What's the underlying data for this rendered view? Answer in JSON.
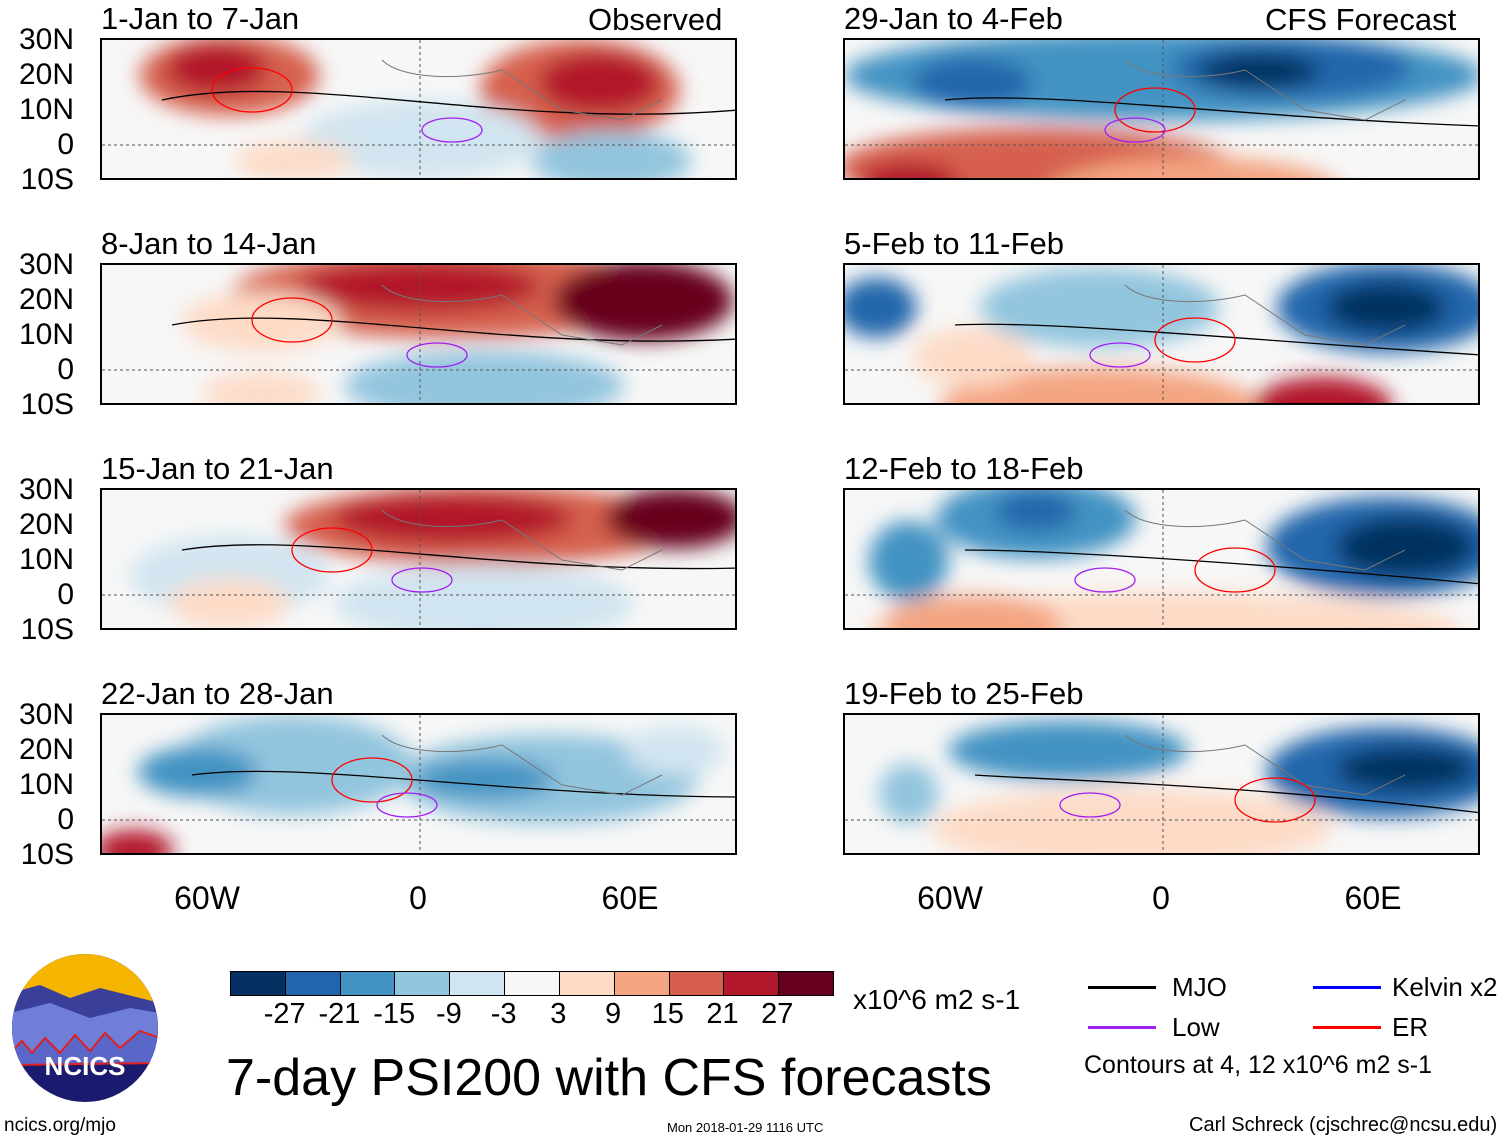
{
  "header": {
    "left_label": "Observed",
    "right_label": "CFS Forecast"
  },
  "panels_left": [
    "1-Jan to 7-Jan",
    "8-Jan to 14-Jan",
    "15-Jan to 21-Jan",
    "22-Jan to 28-Jan"
  ],
  "panels_right": [
    "29-Jan to 4-Feb",
    "5-Feb to 11-Feb",
    "12-Feb to 18-Feb",
    "19-Feb to 25-Feb"
  ],
  "lat_labels": [
    "30N",
    "20N",
    "10N",
    "0",
    "10S"
  ],
  "lon_labels": [
    "60W",
    "0",
    "60E"
  ],
  "colorbar": {
    "colors": [
      "#053061",
      "#2166ac",
      "#4393c3",
      "#92c5de",
      "#d1e5f0",
      "#f7f7f7",
      "#fddbc7",
      "#f4a582",
      "#d6604d",
      "#b2182b",
      "#67001f"
    ],
    "ticks": [
      "-27",
      "-21",
      "-15",
      "-9",
      "-3",
      "3",
      "9",
      "15",
      "21",
      "27"
    ],
    "units": "x10^6 m2 s-1"
  },
  "title": "7-day PSI200 with CFS forecasts",
  "legend": {
    "items": [
      {
        "label": "MJO",
        "color": "#000000"
      },
      {
        "label": "Kelvin x2",
        "color": "#0000ff"
      },
      {
        "label": "Low",
        "color": "#a020f0"
      },
      {
        "label": "ER",
        "color": "#ff0000"
      }
    ],
    "contours": "Contours at 4, 12 x10^6 m2 s-1"
  },
  "logo": {
    "text": "NCICS"
  },
  "footer": {
    "url": "ncics.org/mjo",
    "timestamp": "Mon 2018-01-29 1116 UTC",
    "credit": "Carl Schreck (cjschrec@ncsu.edu)"
  }
}
